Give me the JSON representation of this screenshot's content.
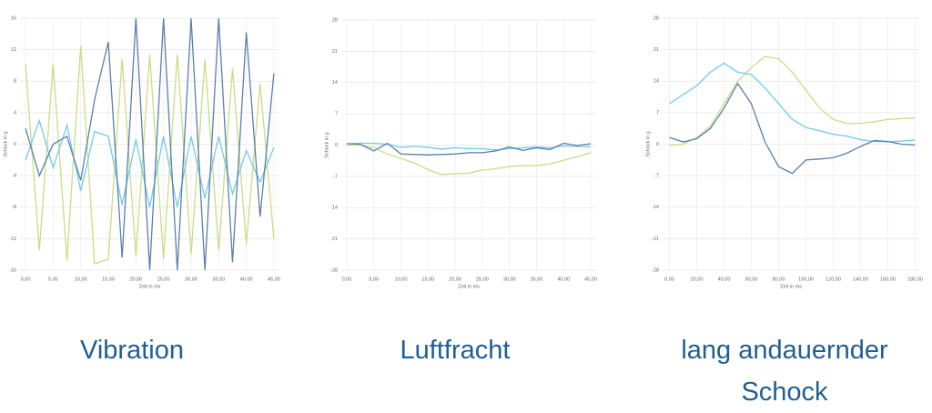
{
  "chart_data": [
    {
      "type": "line",
      "title": "Vibration",
      "x_label": "Zeit in ms",
      "y_label": "Schock in g",
      "x": [
        0,
        2.5,
        5,
        7.5,
        10,
        12.5,
        15,
        17.5,
        20,
        22.5,
        25,
        27.5,
        30,
        32.5,
        35,
        37.5,
        40,
        42.5,
        45
      ],
      "xlim": [
        -1,
        46
      ],
      "xticks": [
        {
          "value": 0,
          "label": "0,00"
        },
        {
          "value": 5,
          "label": "5,00"
        },
        {
          "value": 10,
          "label": "10,00"
        },
        {
          "value": 15,
          "label": "15,00"
        },
        {
          "value": 20,
          "label": "20,00"
        },
        {
          "value": 25,
          "label": "25,00"
        },
        {
          "value": 30,
          "label": "30,00"
        },
        {
          "value": 35,
          "label": "35,00"
        },
        {
          "value": 40,
          "label": "40,00"
        },
        {
          "value": 45,
          "label": "45,00"
        }
      ],
      "ylim": [
        -16,
        16
      ],
      "yticks": [
        -16,
        -12,
        -8,
        -4,
        0,
        4,
        8,
        12,
        16
      ],
      "grid": true,
      "series": [
        {
          "color": "#c9de84",
          "values": [
            10.2,
            -13.5,
            10.2,
            -14.8,
            12.5,
            -15.2,
            -14.6,
            10.8,
            -14.3,
            11.4,
            -14.6,
            11.4,
            -14,
            10.8,
            -13.5,
            9.6,
            -12.7,
            7.7,
            -12
          ]
        },
        {
          "color": "#74c9e8",
          "values": [
            -2,
            3,
            -3,
            2.4,
            -5.9,
            1.6,
            1,
            -7.7,
            0.6,
            -8,
            1,
            -8,
            1,
            -6.9,
            1,
            -6.3,
            -0.8,
            -4.8,
            -0.4
          ]
        },
        {
          "color": "#5a80ab",
          "values": [
            2,
            -4,
            0,
            1,
            -4.6,
            5.6,
            13,
            -14.4,
            16,
            -16,
            16,
            -16,
            16,
            -16,
            16,
            -15,
            14.2,
            -9.2,
            9
          ]
        }
      ]
    },
    {
      "type": "line",
      "title": "Luftfracht",
      "x_label": "Zeit in ms",
      "y_label": "Schock in g",
      "x": [
        0,
        2.5,
        5,
        7.5,
        10,
        12.5,
        15,
        17.5,
        20,
        22.5,
        25,
        27.5,
        30,
        32.5,
        35,
        37.5,
        40,
        42.5,
        45
      ],
      "xlim": [
        -1,
        46
      ],
      "xticks": [
        {
          "value": 0,
          "label": "0,00"
        },
        {
          "value": 5,
          "label": "5,00"
        },
        {
          "value": 10,
          "label": "10,00"
        },
        {
          "value": 15,
          "label": "15,00"
        },
        {
          "value": 20,
          "label": "20,00"
        },
        {
          "value": 25,
          "label": "25,00"
        },
        {
          "value": 30,
          "label": "30,00"
        },
        {
          "value": 35,
          "label": "35,00"
        },
        {
          "value": 40,
          "label": "40,00"
        },
        {
          "value": 45,
          "label": "45,00"
        }
      ],
      "ylim": [
        -28,
        28
      ],
      "yticks": [
        -28,
        -21,
        -14,
        -7,
        0,
        7,
        14,
        21,
        28
      ],
      "grid": true,
      "series": [
        {
          "color": "#c9de84",
          "values": [
            0,
            0,
            -0.6,
            -2,
            -3,
            -4,
            -5.5,
            -6.6,
            -6.4,
            -6.3,
            -5.6,
            -5.3,
            -4.8,
            -4.6,
            -4.6,
            -4.2,
            -3.4,
            -2.6,
            -1.7
          ]
        },
        {
          "color": "#74c9e8",
          "values": [
            0.3,
            0.4,
            0.4,
            0.2,
            -0.5,
            -0.3,
            -0.5,
            -0.9,
            -0.6,
            -0.8,
            -0.8,
            -1.1,
            -0.8,
            -0.6,
            -0.4,
            -0.6,
            -0.2,
            -0.3,
            -0.4
          ]
        },
        {
          "color": "#5a80ab",
          "values": [
            0.3,
            0.2,
            -1.3,
            0.4,
            -2,
            -2.1,
            -2.2,
            -2.1,
            -2,
            -1.7,
            -1.7,
            -1.3,
            -0.4,
            -1.2,
            -0.6,
            -1,
            0.4,
            -0.1,
            0.3
          ]
        }
      ]
    },
    {
      "type": "line",
      "title": "lang andauernder Schock",
      "x_label": "Zeit in ms",
      "y_label": "Schock in g",
      "x": [
        0,
        10,
        20,
        30,
        40,
        50,
        60,
        70,
        80,
        90,
        100,
        110,
        120,
        130,
        140,
        150,
        160,
        170,
        180
      ],
      "xlim": [
        -5,
        183
      ],
      "xticks": [
        {
          "value": 0,
          "label": "0,00"
        },
        {
          "value": 20,
          "label": "20,00"
        },
        {
          "value": 40,
          "label": "40,00"
        },
        {
          "value": 60,
          "label": "60,00"
        },
        {
          "value": 80,
          "label": "80,00"
        },
        {
          "value": 100,
          "label": "100,00"
        },
        {
          "value": 120,
          "label": "120,00"
        },
        {
          "value": 140,
          "label": "140,00"
        },
        {
          "value": 160,
          "label": "160,00"
        },
        {
          "value": 180,
          "label": "180,00"
        }
      ],
      "ylim": [
        -28,
        28
      ],
      "yticks": [
        -28,
        -21,
        -14,
        -7,
        0,
        7,
        14,
        21,
        28
      ],
      "grid": true,
      "series": [
        {
          "color": "#c9de84",
          "values": [
            -0.3,
            0,
            1.5,
            4,
            9,
            14,
            17,
            19.5,
            19,
            16,
            12,
            8,
            5.5,
            4.6,
            4.6,
            5,
            5.5,
            5.7,
            5.8
          ]
        },
        {
          "color": "#74c9e8",
          "values": [
            9,
            11,
            13,
            16,
            18,
            16,
            15.5,
            12.5,
            9,
            5.5,
            3.7,
            3,
            2.2,
            1.8,
            1,
            0.6,
            0.5,
            0.7,
            0.9
          ]
        },
        {
          "color": "#5a80ab",
          "values": [
            1.5,
            0.5,
            1.2,
            3.5,
            8,
            13.5,
            9,
            0.5,
            -5,
            -6.5,
            -3.5,
            -3.3,
            -3,
            -2,
            -0.5,
            0.8,
            0.6,
            0,
            -0.2
          ]
        }
      ]
    }
  ]
}
